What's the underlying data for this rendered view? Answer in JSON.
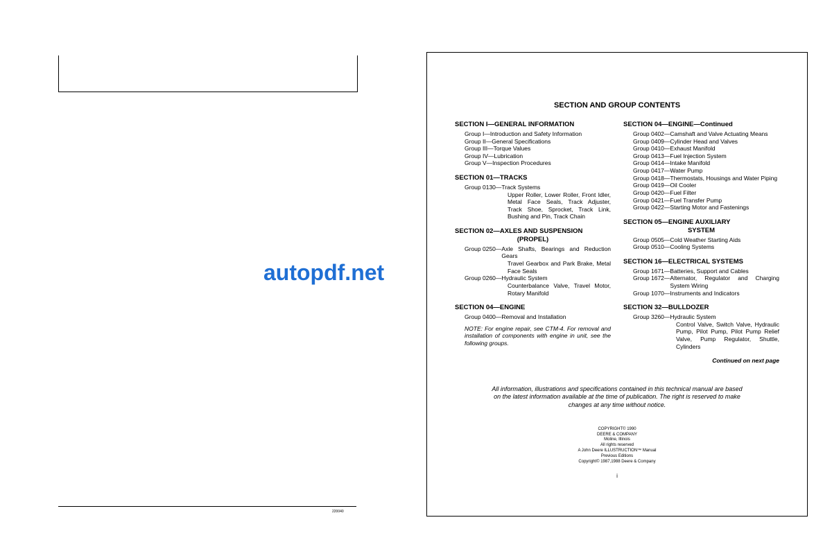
{
  "watermark": "autopdf.net",
  "left_page": {
    "corner_code": "220040"
  },
  "right_page": {
    "title": "SECTION AND GROUP CONTENTS",
    "page_number": "i",
    "continued_text": "Continued on next page",
    "disclaimer": "All information, illustrations and specifications contained in this technical manual are based on the latest information available at the time of publication. The right is reserved to make changes at any time without notice.",
    "copyright_lines": [
      "COPYRIGHT© 1990",
      "DEERE & COMPANY",
      "Moline, Illinois",
      "All rights reserved",
      "A John Deere ILLUSTRUCTION™ Manual",
      "Previous Editions",
      "Copyright© 1987,1988 Deere & Company"
    ],
    "left_col": {
      "sections": [
        {
          "header": "SECTION I—GENERAL INFORMATION",
          "groups": [
            {
              "label": "Group    I—",
              "text": "Introduction and Safety Information"
            },
            {
              "label": "Group   II—",
              "text": "General Specifications"
            },
            {
              "label": "Group  III—",
              "text": "Torque Values"
            },
            {
              "label": "Group IV—",
              "text": "Lubrication"
            },
            {
              "label": "Group  V—",
              "text": "Inspection Procedures"
            }
          ]
        },
        {
          "header": "SECTION 01—TRACKS",
          "groups": [
            {
              "label": "Group 0130—",
              "text": "Track Systems"
            }
          ],
          "sub": "Upper Roller, Lower Roller, Front Idler, Metal Face Seals, Track Adjuster, Track Shoe, Sprocket, Track Link, Bushing and Pin, Track Chain"
        },
        {
          "header": "SECTION 02—AXLES AND SUSPENSION",
          "sub_header": "(PROPEL)",
          "groups": [
            {
              "label": "Group 0250—",
              "text": "Axle Shafts, Bearings and Reduction Gears",
              "sub": "Travel Gearbox and Park Brake, Metal Face Seals"
            },
            {
              "label": "Group 0260—",
              "text": "Hydraulic System",
              "sub": "Counterbalance Valve, Travel Motor, Rotary Manifold"
            }
          ]
        },
        {
          "header": "SECTION 04—ENGINE",
          "groups": [
            {
              "label": "Group 0400—",
              "text": "Removal and Installation"
            }
          ],
          "note": "NOTE:  For engine repair, see CTM-4. For removal and installation of components with engine in unit, see the following groups."
        }
      ]
    },
    "right_col": {
      "sections": [
        {
          "header": "SECTION 04—ENGINE—Continued",
          "groups": [
            {
              "label": "Group 0402—",
              "text": "Camshaft and Valve Actuating Means"
            },
            {
              "label": "Group 0409—",
              "text": "Cylinder Head and Valves"
            },
            {
              "label": "Group 0410—",
              "text": "Exhaust Manifold"
            },
            {
              "label": "Group 0413—",
              "text": "Fuel Injection System"
            },
            {
              "label": "Group 0414—",
              "text": "Intake Manifold"
            },
            {
              "label": "Group 0417—",
              "text": "Water Pump"
            },
            {
              "label": "Group 0418—",
              "text": "Thermostats, Housings and Water Piping"
            },
            {
              "label": "Group 0419—",
              "text": "Oil Cooler"
            },
            {
              "label": "Group 0420—",
              "text": "Fuel Filter"
            },
            {
              "label": "Group 0421—",
              "text": "Fuel Transfer Pump"
            },
            {
              "label": "Group 0422—",
              "text": "Starting Motor and Fastenings"
            }
          ]
        },
        {
          "header": "SECTION 05—ENGINE AUXILIARY",
          "sub_header": "SYSTEM",
          "groups": [
            {
              "label": "Group 0505—",
              "text": "Cold Weather Starting Aids"
            },
            {
              "label": "Group 0510—",
              "text": "Cooling Systems"
            }
          ]
        },
        {
          "header": "SECTION 16—ELECTRICAL SYSTEMS",
          "groups": [
            {
              "label": "Group 1671—",
              "text": "Batteries, Support and Cables"
            },
            {
              "label": "Group 1672—",
              "text": "Alternator, Regulator and Charging System Wiring"
            },
            {
              "label": "Group 1070—",
              "text": "Instruments and Indicators"
            }
          ]
        },
        {
          "header": "SECTION 32—BULLDOZER",
          "groups": [
            {
              "label": "Group 3260—",
              "text": "Hydraulic System",
              "sub": "Control Valve, Switch Valve, Hydraulic Pump, Pilot Pump, Pilot Pump Relief Valve, Pump Regulator, Shuttle, Cylinders"
            }
          ]
        }
      ]
    }
  }
}
